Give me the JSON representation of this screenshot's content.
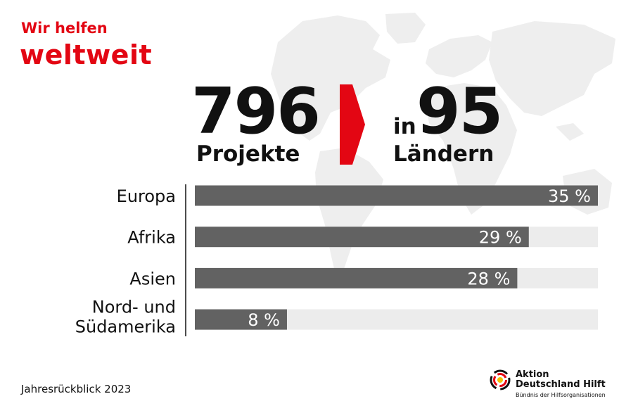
{
  "header": {
    "line1": "Wir helfen",
    "line2": "weltweit"
  },
  "stats": {
    "projects_number": "796",
    "projects_label": "Projekte",
    "countries_prefix": "in",
    "countries_number": "95",
    "countries_label": "Ländern"
  },
  "chart_data": {
    "type": "bar",
    "orientation": "horizontal",
    "categories": [
      "Europa",
      "Afrika",
      "Asien",
      "Nord- und Südamerika"
    ],
    "values": [
      35,
      29,
      28,
      8
    ],
    "value_labels": [
      "35 %",
      "29 %",
      "28 %",
      "8 %"
    ],
    "xlim": [
      0,
      35
    ],
    "grid": false,
    "colors": {
      "bar": "#626262",
      "track": "#ececec",
      "label": "#ffffff"
    }
  },
  "footer": {
    "year_label": "Jahresrückblick 2023",
    "org_name_line1": "Aktion",
    "org_name_line2": "Deutschland Hilft",
    "org_tagline": "Bündnis der Hilfsorganisationen"
  },
  "colors": {
    "accent": "#e30613",
    "map": "#eeeeee",
    "text": "#111111"
  }
}
